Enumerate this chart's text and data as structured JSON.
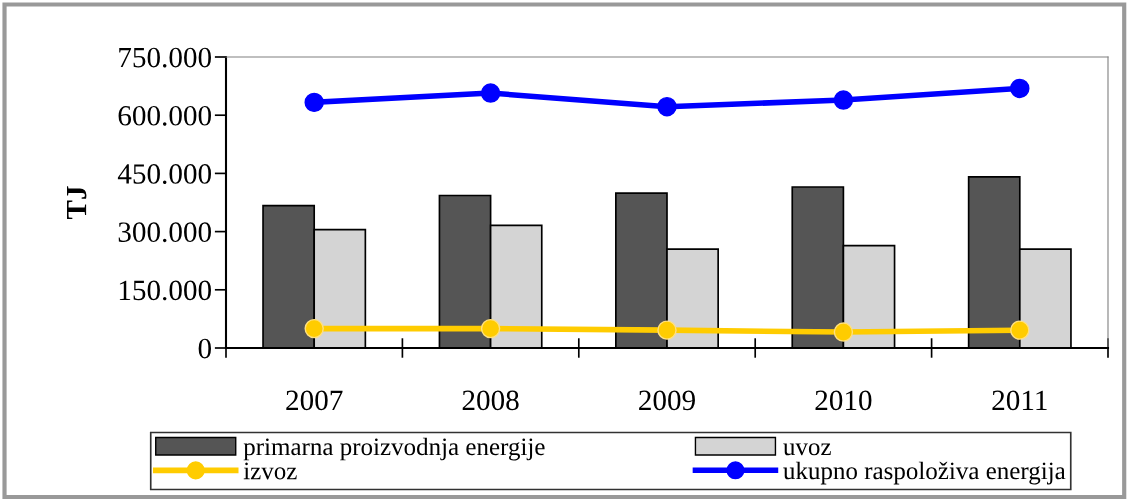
{
  "chart_data": {
    "type": "bar",
    "ylabel": "TJ",
    "categories": [
      "2007",
      "2008",
      "2009",
      "2010",
      "2011"
    ],
    "series": [
      {
        "name": "primarna proizvodnja energije",
        "color": "#555555",
        "values": [
          367000,
          393000,
          399000,
          415000,
          441000
        ]
      },
      {
        "name": "uvoz",
        "color": "#d4d4d4",
        "values": [
          305000,
          316000,
          255000,
          264000,
          255000
        ]
      },
      {
        "name": "izvoz",
        "type": "line",
        "color": "#ffcc00",
        "values": [
          50000,
          50000,
          46000,
          41000,
          46000
        ]
      },
      {
        "name": "ukupno raspoloživa energija",
        "type": "line",
        "color": "#0000ff",
        "values": [
          633000,
          657000,
          622000,
          639000,
          669000
        ]
      }
    ],
    "ylim": [
      0,
      750000
    ],
    "yticks": [
      0,
      {
        "value": 150000,
        "label": "150.000"
      },
      {
        "value": 300000,
        "label": "300.000"
      },
      {
        "value": 450000,
        "label": "450.000"
      },
      {
        "value": 600000,
        "label": "600.000"
      },
      {
        "value": 750000,
        "label": "750.000"
      }
    ],
    "marker": "circle",
    "legend": "bottom",
    "grid": false
  }
}
